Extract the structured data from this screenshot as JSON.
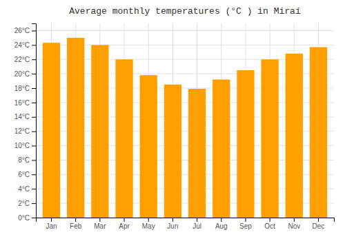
{
  "chart_data": {
    "type": "bar",
    "title": "Average monthly temperatures (°C ) in Miraí",
    "categories": [
      "Jan",
      "Feb",
      "Mar",
      "Apr",
      "May",
      "Jun",
      "Jul",
      "Aug",
      "Sep",
      "Oct",
      "Nov",
      "Dec"
    ],
    "values": [
      24.3,
      25.0,
      24.0,
      22.0,
      19.8,
      18.5,
      17.9,
      19.2,
      20.5,
      22.0,
      22.8,
      23.7
    ],
    "color": "#FFA000",
    "ylim": [
      0,
      27
    ],
    "yticks": [
      {
        "value": 0,
        "label": "0°C"
      },
      {
        "value": 2,
        "label": "2°C"
      },
      {
        "value": 4,
        "label": "4°C"
      },
      {
        "value": 6,
        "label": "6°C"
      },
      {
        "value": 8,
        "label": "8°C"
      },
      {
        "value": 10,
        "label": "10°C"
      },
      {
        "value": 12,
        "label": "12°C"
      },
      {
        "value": 14,
        "label": "14°C"
      },
      {
        "value": 16,
        "label": "16°C"
      },
      {
        "value": 18,
        "label": "18°C"
      },
      {
        "value": 20,
        "label": "20°C"
      },
      {
        "value": 22,
        "label": "22°C"
      },
      {
        "value": 24,
        "label": "24°C"
      },
      {
        "value": 26,
        "label": "26°C"
      }
    ],
    "grid": true
  }
}
